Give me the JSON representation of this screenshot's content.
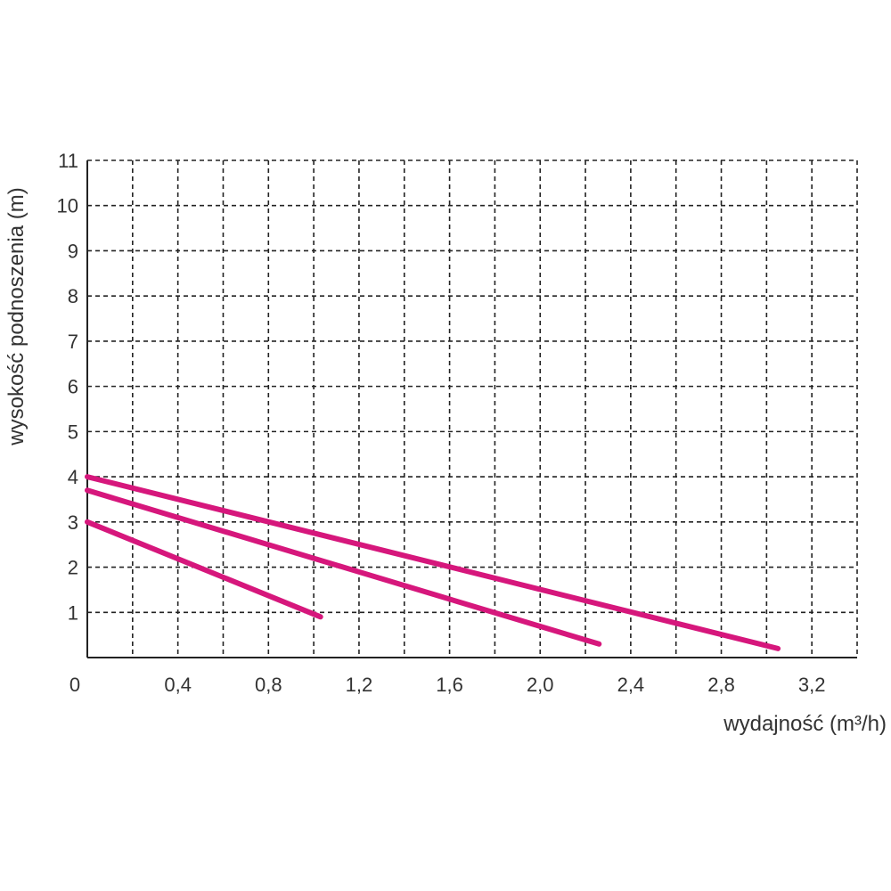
{
  "chart_data": {
    "type": "line",
    "title": "",
    "xlabel": "wydajność (m³/h)",
    "ylabel": "wysokość podnoszenia (m)",
    "xlim": [
      0,
      3.4
    ],
    "ylim": [
      0,
      11
    ],
    "x_ticks": [
      "0",
      "0,4",
      "0,8",
      "1,2",
      "1,6",
      "2,0",
      "2,4",
      "2,8",
      "3,2"
    ],
    "x_tick_values": [
      0,
      0.4,
      0.8,
      1.2,
      1.6,
      2.0,
      2.4,
      2.8,
      3.2
    ],
    "y_ticks": [
      "1",
      "2",
      "3",
      "4",
      "5",
      "6",
      "7",
      "8",
      "9",
      "10",
      "11"
    ],
    "y_tick_values": [
      1,
      2,
      3,
      4,
      5,
      6,
      7,
      8,
      9,
      10,
      11
    ],
    "grid": true,
    "grid_step_x": 0.2,
    "grid_step_y": 1,
    "series": [
      {
        "values": [
          [
            0,
            3.0
          ],
          [
            1.03,
            0.9
          ]
        ]
      },
      {
        "values": [
          [
            0,
            3.7
          ],
          [
            2.26,
            0.3
          ]
        ]
      },
      {
        "values": [
          [
            0,
            4.0
          ],
          [
            3.05,
            0.2
          ]
        ]
      }
    ],
    "colors": {
      "series": "#d6177c",
      "grid": "#222222",
      "axis": "#222222",
      "text": "#333333"
    }
  }
}
